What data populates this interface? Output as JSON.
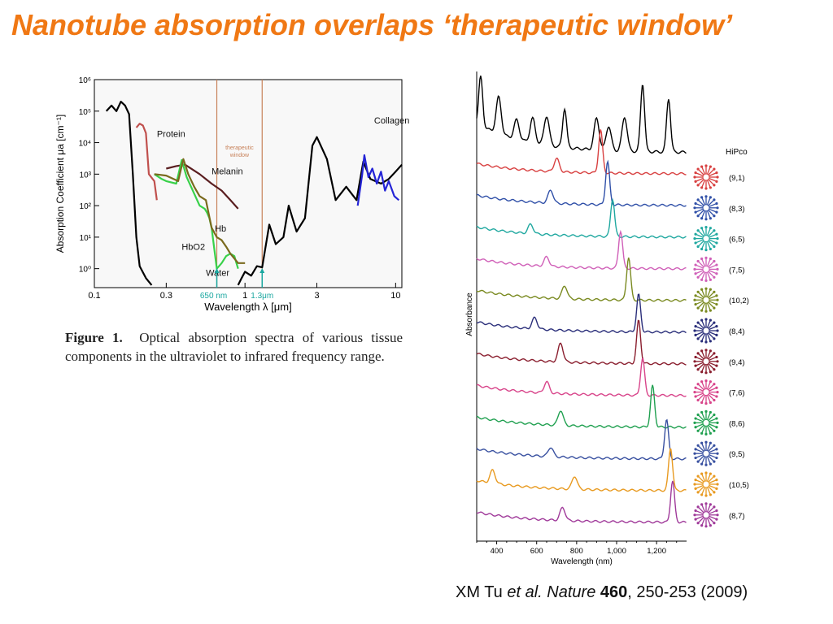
{
  "slide": {
    "title": "Nanotube absorption overlaps ‘therapeutic window’",
    "citation": {
      "authors": "XM Tu",
      "etal": "et al.",
      "journal": "Nature",
      "volume": "460",
      "pages": ", 250-253 (2009)"
    }
  },
  "figure1_caption": {
    "label": "Figure 1.",
    "text": "Optical absorption spectra of various tissue components in the ultraviolet to infrared frequency range."
  },
  "chart_data": [
    {
      "type": "line",
      "title": "",
      "xlabel": "Wavelength λ [μm]",
      "ylabel": "Absorption Coefficient μa [cm⁻¹]",
      "xscale": "log",
      "yscale": "log",
      "xlim": [
        0.1,
        11
      ],
      "ylim": [
        0.25,
        1000000
      ],
      "x_ticks": [
        0.1,
        0.3,
        1,
        3,
        10
      ],
      "x_tick_labels": [
        "0.1",
        "0.3",
        "1",
        "3",
        "10"
      ],
      "y_ticks": [
        1,
        10,
        100,
        1000,
        10000,
        100000,
        1000000
      ],
      "y_tick_labels": [
        "10⁰",
        "10¹",
        "10²",
        "10³",
        "10⁴",
        "10⁵",
        "10⁶"
      ],
      "window": {
        "label_line1": "therapeutic",
        "label_line2": "window",
        "x_start": 0.65,
        "x_end": 1.3,
        "color": "#c8825a"
      },
      "window_markers": [
        {
          "x": 0.65,
          "label": "650 nm",
          "color": "#1aa7a0"
        },
        {
          "x": 1.3,
          "label": "1.3μm",
          "color": "#1aa7a0"
        }
      ],
      "series": [
        {
          "name": "Water",
          "color": "#000000",
          "points": [
            [
              0.12,
              100000
            ],
            [
              0.13,
              150000
            ],
            [
              0.14,
              100000
            ],
            [
              0.15,
              200000
            ],
            [
              0.16,
              150000
            ],
            [
              0.17,
              80000
            ],
            [
              0.18,
              1000
            ],
            [
              0.19,
              10
            ],
            [
              0.2,
              1.2
            ],
            [
              0.22,
              0.5
            ],
            [
              0.24,
              0.3
            ]
          ],
          "label_pos": [
            0.55,
            0.6
          ]
        },
        {
          "name": "Water",
          "color": "#000000",
          "points": [
            [
              0.9,
              0.3
            ],
            [
              0.95,
              0.5
            ],
            [
              1.0,
              0.8
            ],
            [
              1.1,
              0.6
            ],
            [
              1.2,
              1.2
            ],
            [
              1.3,
              1.1
            ],
            [
              1.45,
              25
            ],
            [
              1.6,
              6
            ],
            [
              1.8,
              10
            ],
            [
              1.95,
              100
            ],
            [
              2.2,
              15
            ],
            [
              2.5,
              40
            ],
            [
              2.8,
              8000
            ],
            [
              3.0,
              15000
            ],
            [
              3.5,
              3000
            ],
            [
              4.0,
              150
            ],
            [
              4.7,
              400
            ],
            [
              5.5,
              150
            ],
            [
              6.1,
              2500
            ],
            [
              6.8,
              700
            ],
            [
              8,
              500
            ],
            [
              9,
              700
            ],
            [
              10,
              1200
            ],
            [
              11,
              2000
            ]
          ]
        },
        {
          "name": "Protein",
          "color": "#c0504d",
          "points": [
            [
              0.19,
              30000
            ],
            [
              0.2,
              40000
            ],
            [
              0.21,
              35000
            ],
            [
              0.22,
              20000
            ],
            [
              0.23,
              1000
            ],
            [
              0.25,
              600
            ],
            [
              0.26,
              150
            ]
          ],
          "label_pos": [
            0.26,
            15000
          ]
        },
        {
          "name": "Melanin",
          "color": "#5a1e20",
          "points": [
            [
              0.3,
              1500
            ],
            [
              0.35,
              1800
            ],
            [
              0.4,
              2000
            ],
            [
              0.5,
              1000
            ],
            [
              0.6,
              500
            ],
            [
              0.7,
              300
            ],
            [
              0.8,
              150
            ],
            [
              0.9,
              80
            ]
          ],
          "label_pos": [
            0.6,
            1000
          ]
        },
        {
          "name": "HbO2",
          "color": "#39d14a",
          "points": [
            [
              0.25,
              1000
            ],
            [
              0.28,
              700
            ],
            [
              0.3,
              600
            ],
            [
              0.35,
              500
            ],
            [
              0.38,
              2800
            ],
            [
              0.41,
              800
            ],
            [
              0.45,
              300
            ],
            [
              0.5,
              100
            ],
            [
              0.54,
              80
            ],
            [
              0.56,
              60
            ],
            [
              0.58,
              40
            ],
            [
              0.6,
              20
            ],
            [
              0.65,
              1.0
            ],
            [
              0.7,
              1.5
            ],
            [
              0.75,
              2.5
            ],
            [
              0.8,
              3
            ],
            [
              0.85,
              2.5
            ],
            [
              0.9,
              1.0
            ]
          ],
          "label_pos": [
            0.38,
            4
          ]
        },
        {
          "name": "Hb",
          "color": "#7a6a1e",
          "points": [
            [
              0.25,
              1000
            ],
            [
              0.3,
              900
            ],
            [
              0.36,
              600
            ],
            [
              0.39,
              3000
            ],
            [
              0.42,
              1000
            ],
            [
              0.46,
              400
            ],
            [
              0.5,
              200
            ],
            [
              0.55,
              150
            ],
            [
              0.6,
              20
            ],
            [
              0.65,
              10
            ],
            [
              0.7,
              8
            ],
            [
              0.75,
              5
            ],
            [
              0.8,
              3
            ],
            [
              0.9,
              1.5
            ],
            [
              1.0,
              1.5
            ]
          ],
          "label_pos": [
            0.63,
            15
          ]
        },
        {
          "name": "Collagen",
          "color": "#2424d6",
          "points": [
            [
              5.6,
              100
            ],
            [
              6.0,
              1000
            ],
            [
              6.2,
              4000
            ],
            [
              6.6,
              800
            ],
            [
              7.0,
              1500
            ],
            [
              7.5,
              500
            ],
            [
              8.0,
              1200
            ],
            [
              8.5,
              300
            ],
            [
              9.0,
              600
            ],
            [
              9.8,
              200
            ],
            [
              10.5,
              150
            ]
          ],
          "label_pos": [
            7.2,
            40000
          ]
        }
      ]
    },
    {
      "type": "line",
      "title": "",
      "xlabel": "Wavelength (nm)",
      "ylabel": "Absorbance",
      "xlim": [
        300,
        1350
      ],
      "x_ticks": [
        400,
        600,
        800,
        1000,
        1200
      ],
      "x_tick_labels": [
        "400",
        "600",
        "800",
        "1,000",
        "1,200"
      ],
      "legend_title": "HiPco",
      "series": [
        {
          "name": "HiPco",
          "color": "#000000",
          "peaks": [
            [
              320,
              2.0
            ],
            [
              410,
              1.5
            ],
            [
              500,
              0.8
            ],
            [
              580,
              1.0
            ],
            [
              650,
              1.2
            ],
            [
              740,
              1.6
            ],
            [
              900,
              1.3
            ],
            [
              960,
              1.0
            ],
            [
              1040,
              1.4
            ],
            [
              1130,
              2.8
            ],
            [
              1260,
              2.2
            ]
          ]
        },
        {
          "name": "(9,1)",
          "color": "#d84040",
          "peaks": [
            [
              700,
              0.7
            ],
            [
              920,
              2.3
            ]
          ]
        },
        {
          "name": "(8,3)",
          "color": "#3050a8",
          "peaks": [
            [
              670,
              0.7
            ],
            [
              955,
              2.3
            ]
          ]
        },
        {
          "name": "(6,5)",
          "color": "#20a8a0",
          "peaks": [
            [
              570,
              0.5
            ],
            [
              980,
              2.0
            ]
          ]
        },
        {
          "name": "(7,5)",
          "color": "#d060b8",
          "peaks": [
            [
              650,
              0.5
            ],
            [
              1020,
              2.0
            ]
          ]
        },
        {
          "name": "(10,2)",
          "color": "#7a8a20",
          "peaks": [
            [
              740,
              0.7
            ],
            [
              1060,
              2.3
            ]
          ]
        },
        {
          "name": "(8,4)",
          "color": "#2a2e7a",
          "peaks": [
            [
              590,
              0.6
            ],
            [
              1110,
              2.0
            ]
          ]
        },
        {
          "name": "(9,4)",
          "color": "#8a1e2e",
          "peaks": [
            [
              720,
              1.0
            ],
            [
              1110,
              2.3
            ]
          ]
        },
        {
          "name": "(7,6)",
          "color": "#d8448a",
          "peaks": [
            [
              650,
              0.6
            ],
            [
              1130,
              2.0
            ]
          ]
        },
        {
          "name": "(8,6)",
          "color": "#20a050",
          "peaks": [
            [
              720,
              0.8
            ],
            [
              1180,
              2.2
            ]
          ]
        },
        {
          "name": "(9,5)",
          "color": "#3850a0",
          "peaks": [
            [
              670,
              0.5
            ],
            [
              1250,
              2.1
            ]
          ]
        },
        {
          "name": "(10,5)",
          "color": "#e89a20",
          "peaks": [
            [
              380,
              0.7
            ],
            [
              790,
              0.7
            ],
            [
              1270,
              2.3
            ]
          ]
        },
        {
          "name": "(8,7)",
          "color": "#a03a9a",
          "peaks": [
            [
              730,
              0.7
            ],
            [
              1280,
              2.2
            ]
          ]
        }
      ]
    }
  ]
}
